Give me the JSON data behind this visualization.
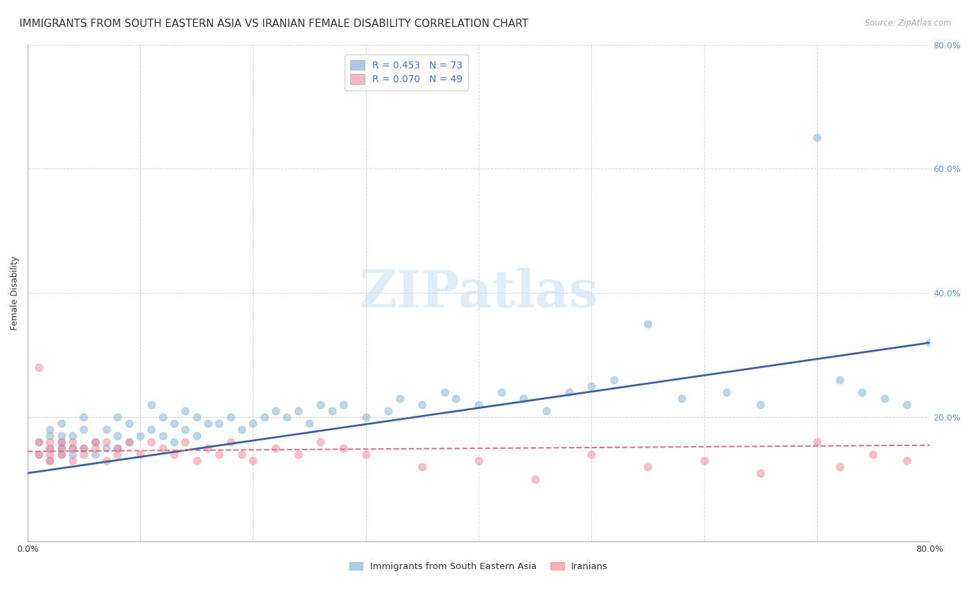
{
  "title": "IMMIGRANTS FROM SOUTH EASTERN ASIA VS IRANIAN FEMALE DISABILITY CORRELATION CHART",
  "source": "Source: ZipAtlas.com",
  "ylabel": "Female Disability",
  "xlim": [
    0.0,
    0.8
  ],
  "ylim": [
    0.0,
    0.8
  ],
  "legend1_label": "R = 0.453   N = 73",
  "legend2_label": "R = 0.070   N = 49",
  "legend1_color": "#aec6e8",
  "legend2_color": "#f4b8c1",
  "blue_line_color": "#3a5fa0",
  "pink_line_color": "#e07090",
  "scatter_blue_color": "#7bafd4",
  "scatter_pink_color": "#f48090",
  "watermark": "ZIPatlas",
  "blue_scatter_x": [
    0.01,
    0.01,
    0.02,
    0.02,
    0.02,
    0.02,
    0.03,
    0.03,
    0.03,
    0.03,
    0.03,
    0.04,
    0.04,
    0.04,
    0.05,
    0.05,
    0.05,
    0.06,
    0.06,
    0.07,
    0.07,
    0.08,
    0.08,
    0.08,
    0.09,
    0.09,
    0.1,
    0.11,
    0.11,
    0.12,
    0.12,
    0.13,
    0.13,
    0.14,
    0.14,
    0.15,
    0.15,
    0.16,
    0.17,
    0.18,
    0.19,
    0.2,
    0.21,
    0.22,
    0.23,
    0.24,
    0.25,
    0.26,
    0.27,
    0.28,
    0.3,
    0.32,
    0.33,
    0.35,
    0.37,
    0.38,
    0.4,
    0.42,
    0.44,
    0.46,
    0.48,
    0.5,
    0.52,
    0.55,
    0.58,
    0.62,
    0.65,
    0.7,
    0.72,
    0.74,
    0.76,
    0.78,
    0.8
  ],
  "blue_scatter_y": [
    0.14,
    0.16,
    0.13,
    0.15,
    0.18,
    0.17,
    0.14,
    0.16,
    0.15,
    0.17,
    0.19,
    0.14,
    0.15,
    0.17,
    0.15,
    0.18,
    0.2,
    0.14,
    0.16,
    0.15,
    0.18,
    0.15,
    0.17,
    0.2,
    0.16,
    0.19,
    0.17,
    0.18,
    0.22,
    0.17,
    0.2,
    0.16,
    0.19,
    0.18,
    0.21,
    0.17,
    0.2,
    0.19,
    0.19,
    0.2,
    0.18,
    0.19,
    0.2,
    0.21,
    0.2,
    0.21,
    0.19,
    0.22,
    0.21,
    0.22,
    0.2,
    0.21,
    0.23,
    0.22,
    0.24,
    0.23,
    0.22,
    0.24,
    0.23,
    0.21,
    0.24,
    0.25,
    0.26,
    0.35,
    0.23,
    0.24,
    0.22,
    0.65,
    0.26,
    0.24,
    0.23,
    0.22,
    0.32
  ],
  "pink_scatter_x": [
    0.01,
    0.01,
    0.01,
    0.02,
    0.02,
    0.02,
    0.02,
    0.03,
    0.03,
    0.03,
    0.04,
    0.04,
    0.04,
    0.05,
    0.05,
    0.06,
    0.06,
    0.07,
    0.07,
    0.08,
    0.08,
    0.09,
    0.1,
    0.11,
    0.12,
    0.13,
    0.14,
    0.15,
    0.16,
    0.17,
    0.18,
    0.19,
    0.2,
    0.22,
    0.24,
    0.26,
    0.28,
    0.3,
    0.35,
    0.4,
    0.45,
    0.5,
    0.55,
    0.6,
    0.65,
    0.7,
    0.72,
    0.75,
    0.78
  ],
  "pink_scatter_y": [
    0.14,
    0.16,
    0.28,
    0.13,
    0.15,
    0.16,
    0.14,
    0.15,
    0.14,
    0.16,
    0.15,
    0.13,
    0.16,
    0.14,
    0.15,
    0.16,
    0.15,
    0.13,
    0.16,
    0.14,
    0.15,
    0.16,
    0.14,
    0.16,
    0.15,
    0.14,
    0.16,
    0.13,
    0.15,
    0.14,
    0.16,
    0.14,
    0.13,
    0.15,
    0.14,
    0.16,
    0.15,
    0.14,
    0.12,
    0.13,
    0.1,
    0.14,
    0.12,
    0.13,
    0.11,
    0.16,
    0.12,
    0.14,
    0.13
  ],
  "blue_line_x": [
    0.0,
    0.8
  ],
  "blue_line_y": [
    0.11,
    0.32
  ],
  "pink_line_x": [
    0.0,
    0.8
  ],
  "pink_line_y": [
    0.145,
    0.155
  ],
  "title_fontsize": 11,
  "axis_label_fontsize": 9,
  "tick_fontsize": 9,
  "background_color": "#ffffff",
  "grid_color": "#cccccc"
}
